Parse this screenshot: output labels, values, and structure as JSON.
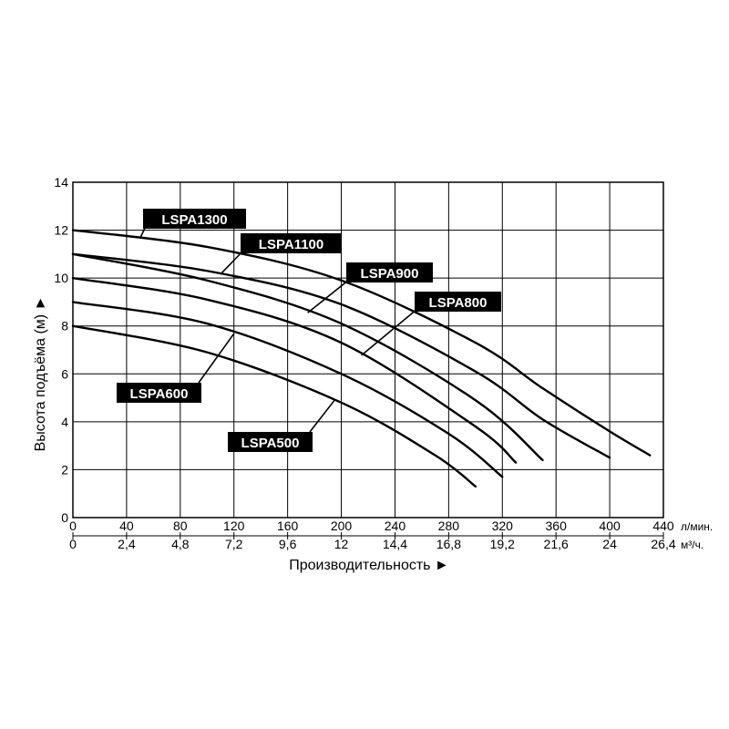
{
  "chart_data": {
    "type": "line",
    "title": "",
    "xlabel": "Производительность ►",
    "ylabel": "Высота подъёма (м) ►",
    "x_unit": "л/мин.",
    "x2_unit": "м³/ч.",
    "xlim": [
      0,
      440
    ],
    "ylim": [
      0,
      14
    ],
    "x_ticks": [
      "0",
      "40",
      "80",
      "120",
      "160",
      "200",
      "240",
      "280",
      "320",
      "360",
      "400",
      "440"
    ],
    "x2_ticks": [
      "0",
      "2,4",
      "4,8",
      "7,2",
      "9,6",
      "12",
      "14,4",
      "16,8",
      "19,2",
      "21,6",
      "24",
      "26,4"
    ],
    "y_ticks": [
      "0",
      "2",
      "4",
      "6",
      "8",
      "10",
      "12",
      "14"
    ],
    "grid": true,
    "series": [
      {
        "name": "LSPA1300",
        "x": [
          0,
          100,
          200,
          300,
          350,
          400,
          430
        ],
        "y": [
          12,
          11.3,
          9.9,
          7.3,
          5.4,
          3.6,
          2.6
        ]
      },
      {
        "name": "LSPA1100",
        "x": [
          0,
          100,
          200,
          300,
          350,
          400
        ],
        "y": [
          11,
          10.3,
          8.9,
          6.1,
          4.1,
          2.5
        ]
      },
      {
        "name": "LSPA900",
        "x": [
          0,
          100,
          200,
          300,
          350
        ],
        "y": [
          11,
          9.9,
          8.1,
          4.9,
          2.4
        ]
      },
      {
        "name": "LSPA800",
        "x": [
          0,
          100,
          200,
          300,
          330
        ],
        "y": [
          10,
          9.1,
          7.3,
          3.8,
          2.3
        ]
      },
      {
        "name": "LSPA600",
        "x": [
          0,
          100,
          200,
          280,
          320
        ],
        "y": [
          9,
          8.1,
          6.0,
          3.5,
          1.7
        ]
      },
      {
        "name": "LSPA500",
        "x": [
          0,
          100,
          200,
          270,
          300
        ],
        "y": [
          8,
          6.9,
          4.8,
          2.6,
          1.3
        ]
      }
    ]
  }
}
